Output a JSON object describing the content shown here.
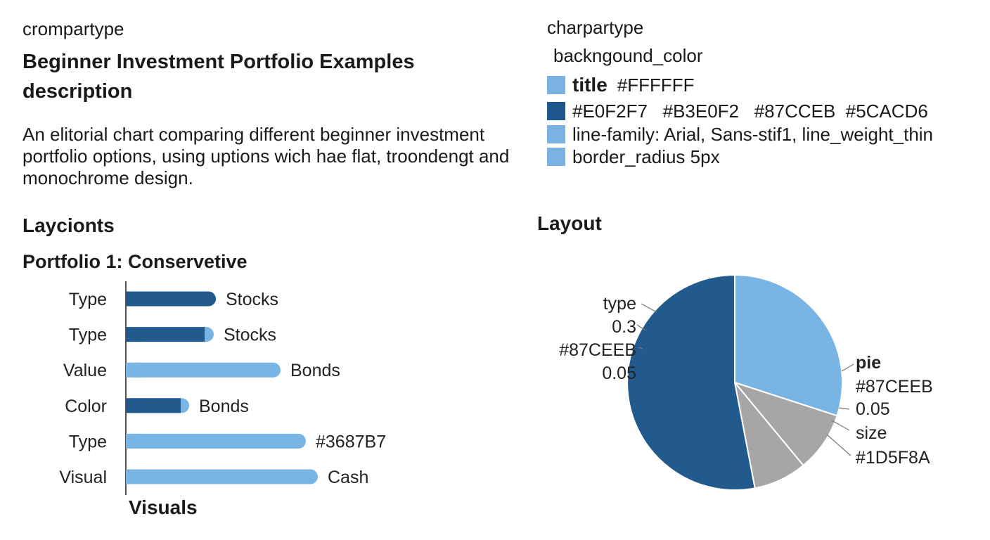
{
  "left": {
    "kicker": "crompartype",
    "title_line1": "Beginner Investment Portfolio Examples",
    "title_line2": "description",
    "description": "An elitorial chart comparing different beginner investment portfolio options, using uptions wich hae flat, troondengt and monochrome design.",
    "section": "Laycionts",
    "subtitle": "Portfolio 1: Conservetive",
    "footer": "Visuals"
  },
  "right": {
    "kicker": "charpartype",
    "background_label": "backngound_color",
    "spec": [
      {
        "swatch": "#7AB3E2",
        "strong": "title",
        "text": "#FFFFFF"
      },
      {
        "swatch": "#1F568C",
        "strong": "",
        "text": "#E0F2F7   #B3E0F2   #87CCEB  #5CACD6"
      },
      {
        "swatch": "#7AB3E2",
        "strong": "",
        "text": "line-family: Arial, Sans-stif1, line_weight_thin"
      },
      {
        "swatch": "#7AB3E2",
        "strong": "",
        "text": "border_radius 5px"
      }
    ],
    "section": "Layout"
  },
  "colors": {
    "dark_blue": "#235A8E",
    "light_blue": "#78B4E4",
    "gray": "#A6A6A6",
    "axis": "#555555"
  },
  "chart_data": [
    {
      "type": "bar",
      "orientation": "horizontal",
      "title": "Portfolio 1: Conservetive",
      "categories": [
        "Type",
        "Type",
        "Value",
        "Color",
        "Type",
        "Visual"
      ],
      "annotations": [
        "Stocks",
        "Stocks",
        "Bonds",
        "Bonds",
        "#3687B7",
        "Cash"
      ],
      "series": [
        {
          "color": "#235A8E",
          "values": [
            128,
            112,
            0,
            78,
            0,
            0
          ]
        },
        {
          "color": "#78B4E4",
          "values": [
            128,
            125,
            220,
            90,
            256,
            273
          ]
        }
      ],
      "xlim": [
        0,
        300
      ]
    },
    {
      "type": "pie",
      "slices": [
        {
          "value": 0.3,
          "color": "#78B4E4"
        },
        {
          "value": 0.09,
          "color": "#A6A6A6"
        },
        {
          "value": 0.08,
          "color": "#A6A6A6"
        },
        {
          "value": 0.53,
          "color": "#235A8E"
        }
      ],
      "labels_left": [
        "type",
        "0.3",
        "#87CEEB",
        "0.05"
      ],
      "labels_right_bold": "pie",
      "labels_right": [
        "#87CEEB",
        "0.05",
        "size",
        "#1D5F8A"
      ]
    }
  ]
}
